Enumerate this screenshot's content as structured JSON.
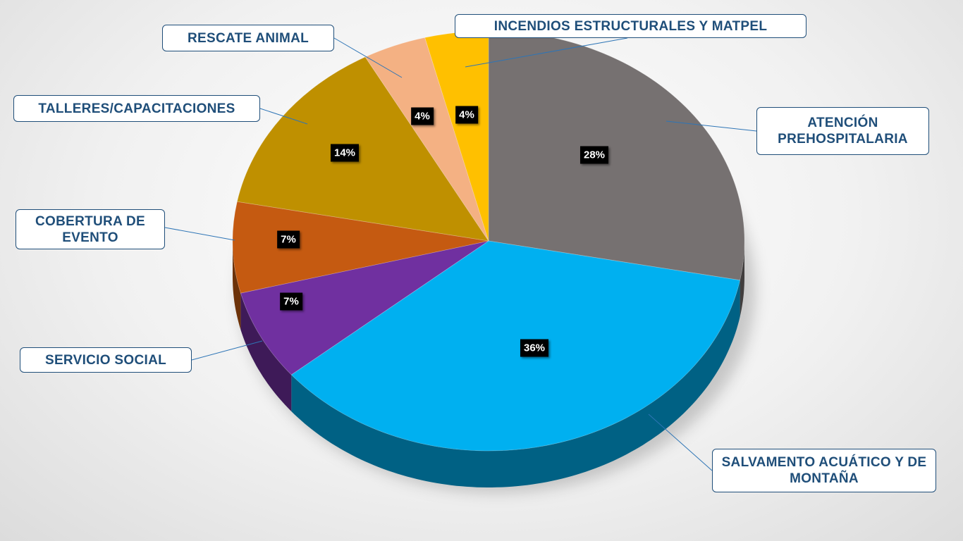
{
  "chart_data": {
    "type": "pie",
    "title": "",
    "slices": [
      {
        "label": "ATENCIÓN PREHOSPITALARIA",
        "value": 28,
        "display": "28%",
        "color": "#767171"
      },
      {
        "label": "SALVAMENTO ACUÁTICO Y DE MONTAÑA",
        "value": 36,
        "display": "36%",
        "color": "#00b0f0"
      },
      {
        "label": "SERVICIO SOCIAL",
        "value": 7,
        "display": "7%",
        "color": "#7030a0"
      },
      {
        "label": "COBERTURA DE EVENTO",
        "value": 7,
        "display": "7%",
        "color": "#c55a11"
      },
      {
        "label": "TALLERES/CAPACITACIONES",
        "value": 14,
        "display": "14%",
        "color": "#bf9000"
      },
      {
        "label": "RESCATE ANIMAL",
        "value": 4,
        "display": "4%",
        "color": "#f4b183"
      },
      {
        "label": "INCENDIOS ESTRUCTURALES Y MATPEL",
        "value": 4,
        "display": "4%",
        "color": "#ffc000"
      }
    ],
    "legend": "none"
  }
}
